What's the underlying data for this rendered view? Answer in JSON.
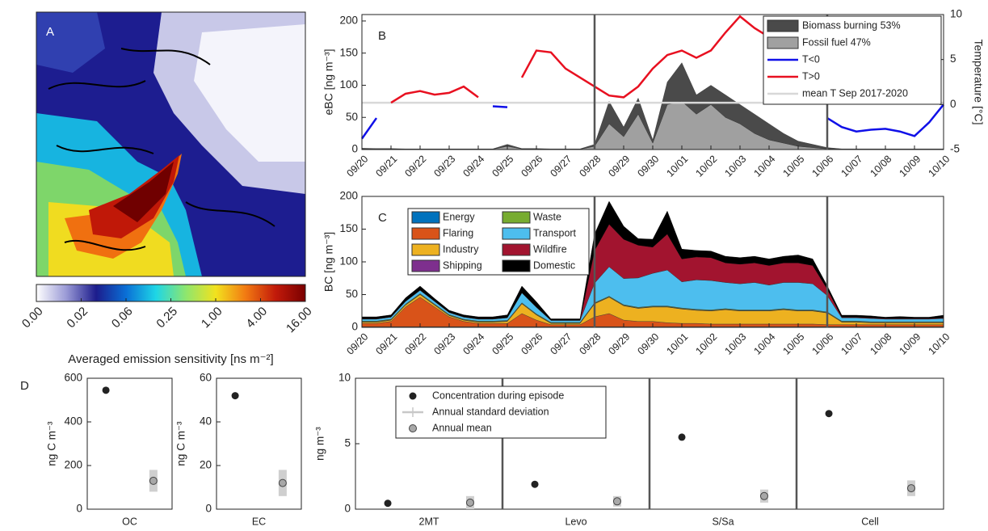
{
  "chart_data": [
    {
      "type": "colorbar",
      "label": "A",
      "colorbar_label": "Averaged emission sensitivity [ns m⁻²]",
      "colormap": [
        "#ffffff",
        "#9a9ad6",
        "#1c1c8c",
        "#0a6fd6",
        "#1ed6e6",
        "#8ee66e",
        "#f2e21e",
        "#f27a12",
        "#c21a0a",
        "#7a0000"
      ],
      "ticks": [
        {
          "value": 0,
          "label": "0.00"
        },
        {
          "value": 0.02,
          "label": "0.02"
        },
        {
          "value": 0.06,
          "label": "0.06"
        },
        {
          "value": 0.25,
          "label": "0.25"
        },
        {
          "value": 1,
          "label": "1.00"
        },
        {
          "value": 4,
          "label": "4.00"
        },
        {
          "value": 16,
          "label": "16.00"
        }
      ]
    },
    {
      "type": "area-line",
      "label": "B",
      "ylabel": "eBC [ng m⁻³]",
      "y2label": "Temperature [°C]",
      "stack_from": "last",
      "x": [
        0,
        0.5,
        1,
        1.5,
        2,
        2.5,
        3,
        3.5,
        4,
        4.5,
        5,
        5.5,
        6,
        6.5,
        7,
        7.5,
        8,
        8.5,
        9,
        9.5,
        10,
        10.5,
        11,
        11.5,
        12,
        12.5,
        13,
        13.5,
        14,
        14.5,
        15,
        15.5,
        16,
        16.5,
        17,
        17.5,
        18,
        18.5,
        19,
        19.5,
        20
      ],
      "xlim": [
        0,
        20
      ],
      "xticks": [
        {
          "value": 0,
          "label": "09/20"
        },
        {
          "value": 1,
          "label": "09/21"
        },
        {
          "value": 2,
          "label": "09/22"
        },
        {
          "value": 3,
          "label": "09/23"
        },
        {
          "value": 4,
          "label": "09/24"
        },
        {
          "value": 5,
          "label": "09/25"
        },
        {
          "value": 6,
          "label": "09/26"
        },
        {
          "value": 7,
          "label": "09/27"
        },
        {
          "value": 8,
          "label": "09/28"
        },
        {
          "value": 9,
          "label": "09/29"
        },
        {
          "value": 10,
          "label": "09/30"
        },
        {
          "value": 11,
          "label": "10/01"
        },
        {
          "value": 12,
          "label": "10/02"
        },
        {
          "value": 13,
          "label": "10/03"
        },
        {
          "value": 14,
          "label": "10/04"
        },
        {
          "value": 15,
          "label": "10/05"
        },
        {
          "value": 16,
          "label": "10/06"
        },
        {
          "value": 17,
          "label": "10/07"
        },
        {
          "value": 18,
          "label": "10/08"
        },
        {
          "value": 19,
          "label": "10/09"
        },
        {
          "value": 20,
          "label": "10/10"
        }
      ],
      "ylim": [
        0,
        210
      ],
      "yticks": [
        0,
        50,
        100,
        150,
        200
      ],
      "y2lim": [
        -5,
        10
      ],
      "y2ticks": [
        -5,
        0,
        5,
        10
      ],
      "vlines": [
        8,
        16
      ],
      "series": [
        {
          "name": "Biomass burning 53%",
          "kind": "area",
          "color": "#4a4a4a",
          "values": [
            1,
            0.5,
            0.5,
            0.5,
            0.5,
            0.5,
            0.5,
            0.5,
            0.5,
            0.5,
            3,
            0.5,
            0.5,
            0.5,
            0.5,
            0.5,
            3,
            35,
            15,
            25,
            5,
            35,
            60,
            30,
            30,
            35,
            30,
            30,
            25,
            15,
            8,
            5,
            2,
            0.5,
            0.5,
            0.5,
            0.5,
            0.5,
            0.5,
            0.5,
            0.5
          ]
        },
        {
          "name": "Fossil fuel 47%",
          "kind": "area",
          "color": "#a0a0a0",
          "values": [
            1,
            1,
            1,
            0.5,
            0.5,
            0.5,
            0.5,
            0.5,
            0.5,
            0.5,
            5,
            1,
            1,
            0.5,
            0.5,
            0.5,
            5,
            40,
            20,
            55,
            10,
            70,
            75,
            55,
            70,
            50,
            40,
            25,
            15,
            10,
            5,
            3,
            1,
            0.5,
            0.5,
            0.5,
            0.5,
            0.5,
            0.5,
            0.5,
            0.5
          ]
        },
        {
          "name": "T<0",
          "kind": "line",
          "axis": "y2",
          "color": "#1010e8",
          "values": [
            -3.8,
            -1.5,
            null,
            null,
            null,
            null,
            null,
            null,
            null,
            -0.2,
            -0.3,
            null,
            null,
            null,
            null,
            null,
            null,
            null,
            null,
            null,
            null,
            null,
            null,
            null,
            null,
            null,
            null,
            null,
            null,
            null,
            null,
            null,
            -1.5,
            -2.5,
            -3.0,
            -2.8,
            -2.7,
            -3.0,
            -3.5,
            -2.0,
            0.0
          ]
        },
        {
          "name": "T>0",
          "kind": "line",
          "axis": "y2",
          "color": "#e81020",
          "values": [
            null,
            null,
            0.2,
            1.2,
            1.5,
            1.1,
            1.3,
            2.0,
            0.8,
            null,
            null,
            3.0,
            6.0,
            5.8,
            4.0,
            3.0,
            2.0,
            1.0,
            0.8,
            2.0,
            4.0,
            5.5,
            6.0,
            5.2,
            6.0,
            8.0,
            9.8,
            8.5,
            7.5,
            6.0,
            3.0,
            0.5,
            null,
            null,
            null,
            null,
            null,
            null,
            null,
            null,
            null
          ]
        }
      ],
      "reference_lines": [
        {
          "name": "mean T Sep 2017-2020",
          "axis": "y2",
          "value": 0.2,
          "color": "#d8d8d8"
        }
      ],
      "legend": "upper right"
    },
    {
      "type": "stacked-area",
      "label": "C",
      "ylabel": "BC [ng m⁻³]",
      "x": [
        0,
        0.5,
        1,
        1.5,
        2,
        2.5,
        3,
        3.5,
        4,
        4.5,
        5,
        5.5,
        6,
        6.5,
        7,
        7.5,
        8,
        8.5,
        9,
        9.5,
        10,
        10.5,
        11,
        11.5,
        12,
        12.5,
        13,
        13.5,
        14,
        14.5,
        15,
        15.5,
        16,
        16.5,
        17,
        17.5,
        18,
        18.5,
        19,
        19.5,
        20
      ],
      "xlim": [
        0,
        20
      ],
      "xticks": [
        {
          "value": 0,
          "label": "09/20"
        },
        {
          "value": 1,
          "label": "09/21"
        },
        {
          "value": 2,
          "label": "09/22"
        },
        {
          "value": 3,
          "label": "09/23"
        },
        {
          "value": 4,
          "label": "09/24"
        },
        {
          "value": 5,
          "label": "09/25"
        },
        {
          "value": 6,
          "label": "09/26"
        },
        {
          "value": 7,
          "label": "09/27"
        },
        {
          "value": 8,
          "label": "09/28"
        },
        {
          "value": 9,
          "label": "09/29"
        },
        {
          "value": 10,
          "label": "09/30"
        },
        {
          "value": 11,
          "label": "10/01"
        },
        {
          "value": 12,
          "label": "10/02"
        },
        {
          "value": 13,
          "label": "10/03"
        },
        {
          "value": 14,
          "label": "10/04"
        },
        {
          "value": 15,
          "label": "10/05"
        },
        {
          "value": 16,
          "label": "10/06"
        },
        {
          "value": 17,
          "label": "10/07"
        },
        {
          "value": 18,
          "label": "10/08"
        },
        {
          "value": 19,
          "label": "10/09"
        },
        {
          "value": 20,
          "label": "10/10"
        }
      ],
      "ylim": [
        0,
        200
      ],
      "yticks": [
        0,
        50,
        100,
        150,
        200
      ],
      "vlines": [
        8,
        16
      ],
      "series": [
        {
          "name": "Energy",
          "color": "#0072bd",
          "values": [
            1,
            1,
            1,
            1,
            1,
            1,
            1,
            1,
            1,
            1,
            1,
            1,
            1,
            1,
            1,
            1,
            1,
            1,
            1,
            1,
            1,
            1,
            1,
            1,
            1,
            1,
            1,
            1,
            1,
            1,
            1,
            1,
            1,
            1,
            1,
            1,
            1,
            1,
            1,
            1,
            1
          ]
        },
        {
          "name": "Flaring",
          "color": "#d95319",
          "values": [
            5,
            5,
            8,
            30,
            45,
            30,
            15,
            8,
            5,
            5,
            5,
            20,
            10,
            3,
            3,
            3,
            15,
            20,
            10,
            8,
            8,
            6,
            5,
            5,
            4,
            4,
            4,
            4,
            4,
            4,
            4,
            4,
            3,
            3,
            3,
            3,
            3,
            3,
            3,
            3,
            3
          ]
        },
        {
          "name": "Industry",
          "color": "#edb120",
          "values": [
            2,
            2,
            2,
            3,
            4,
            3,
            2,
            2,
            2,
            2,
            3,
            15,
            8,
            2,
            2,
            2,
            20,
            25,
            22,
            20,
            22,
            24,
            22,
            20,
            20,
            22,
            20,
            20,
            20,
            22,
            20,
            20,
            18,
            4,
            4,
            3,
            3,
            3,
            3,
            3,
            3
          ]
        },
        {
          "name": "Shipping",
          "color": "#7e2f8e",
          "values": [
            0.5,
            0.5,
            0.5,
            0.5,
            0.5,
            0.5,
            0.5,
            0.5,
            0.5,
            0.5,
            0.5,
            0.5,
            0.5,
            0.5,
            0.5,
            0.5,
            0.5,
            0.5,
            0.5,
            0.5,
            0.5,
            0.5,
            0.5,
            0.5,
            0.5,
            0.5,
            0.5,
            0.5,
            0.5,
            0.5,
            0.5,
            0.5,
            0.5,
            0.5,
            0.5,
            0.5,
            0.5,
            0.5,
            0.5,
            0.5,
            0.5
          ]
        },
        {
          "name": "Waste",
          "color": "#77ac30",
          "values": [
            1,
            1,
            1,
            1,
            1,
            1,
            1,
            1,
            1,
            1,
            1,
            1,
            1,
            1,
            1,
            1,
            1,
            1,
            1,
            1,
            1,
            1,
            1,
            1,
            1,
            1,
            1,
            1,
            1,
            1,
            1,
            1,
            1,
            1,
            1,
            1,
            1,
            1,
            1,
            1,
            1
          ]
        },
        {
          "name": "Transport",
          "color": "#4dbeee",
          "values": [
            3,
            3,
            3,
            4,
            5,
            4,
            3,
            3,
            3,
            3,
            4,
            15,
            10,
            3,
            3,
            3,
            30,
            45,
            40,
            45,
            50,
            55,
            40,
            45,
            45,
            40,
            40,
            42,
            38,
            40,
            42,
            40,
            25,
            5,
            5,
            5,
            4,
            4,
            4,
            4,
            5
          ]
        },
        {
          "name": "Wildfire",
          "color": "#a2142f",
          "values": [
            0.5,
            0.5,
            0.5,
            0.5,
            0.5,
            0.5,
            0.5,
            0.5,
            0.5,
            0.5,
            0.5,
            0.5,
            0.5,
            0.5,
            0.5,
            0.5,
            50,
            65,
            60,
            50,
            40,
            55,
            35,
            35,
            35,
            30,
            30,
            30,
            30,
            30,
            30,
            28,
            10,
            1,
            1,
            1,
            1,
            1,
            1,
            1,
            1
          ]
        },
        {
          "name": "Domestic",
          "color": "#000000",
          "values": [
            3,
            3,
            3,
            5,
            6,
            4,
            3,
            3,
            3,
            3,
            4,
            10,
            8,
            2,
            2,
            2,
            25,
            35,
            20,
            10,
            12,
            35,
            15,
            10,
            10,
            10,
            10,
            10,
            10,
            10,
            12,
            10,
            5,
            3,
            3,
            3,
            2,
            3,
            2,
            2,
            4
          ]
        }
      ],
      "legend": "upper left"
    },
    {
      "type": "dot-errorbar",
      "label": "D",
      "ylabel": "ng C m⁻³",
      "categories": [
        "OC"
      ],
      "ylim": [
        0,
        600
      ],
      "yticks": [
        0,
        200,
        400,
        600
      ],
      "series": [
        {
          "color": "#222222",
          "values": [
            545
          ]
        },
        {
          "color": "#a8a8a8",
          "values": [
            130
          ],
          "errors": [
            50
          ]
        }
      ]
    },
    {
      "type": "dot-errorbar",
      "ylabel": "ng C m⁻³",
      "categories": [
        "EC"
      ],
      "ylim": [
        0,
        60
      ],
      "yticks": [
        0,
        20,
        40,
        60
      ],
      "series": [
        {
          "color": "#222222",
          "values": [
            52
          ]
        },
        {
          "color": "#a8a8a8",
          "values": [
            12
          ],
          "errors": [
            6
          ]
        }
      ]
    },
    {
      "type": "dot-errorbar",
      "ylabel": "ng m⁻³",
      "categories": [
        "2MT",
        "Levo",
        "S/Sa",
        "Cell"
      ],
      "ylim": [
        0,
        10
      ],
      "yticks": [
        0,
        5,
        10
      ],
      "separators": true,
      "legend": "upper left",
      "series": [
        {
          "name": "Concentration during episode",
          "color": "#222222",
          "values": [
            0.45,
            1.9,
            5.5,
            7.3
          ]
        },
        {
          "name": "Annual mean",
          "error_name": "Annual standard deviation",
          "color": "#a8a8a8",
          "values": [
            0.5,
            0.6,
            1.0,
            1.6
          ],
          "errors": [
            0.5,
            0.4,
            0.5,
            0.6
          ]
        }
      ]
    }
  ]
}
